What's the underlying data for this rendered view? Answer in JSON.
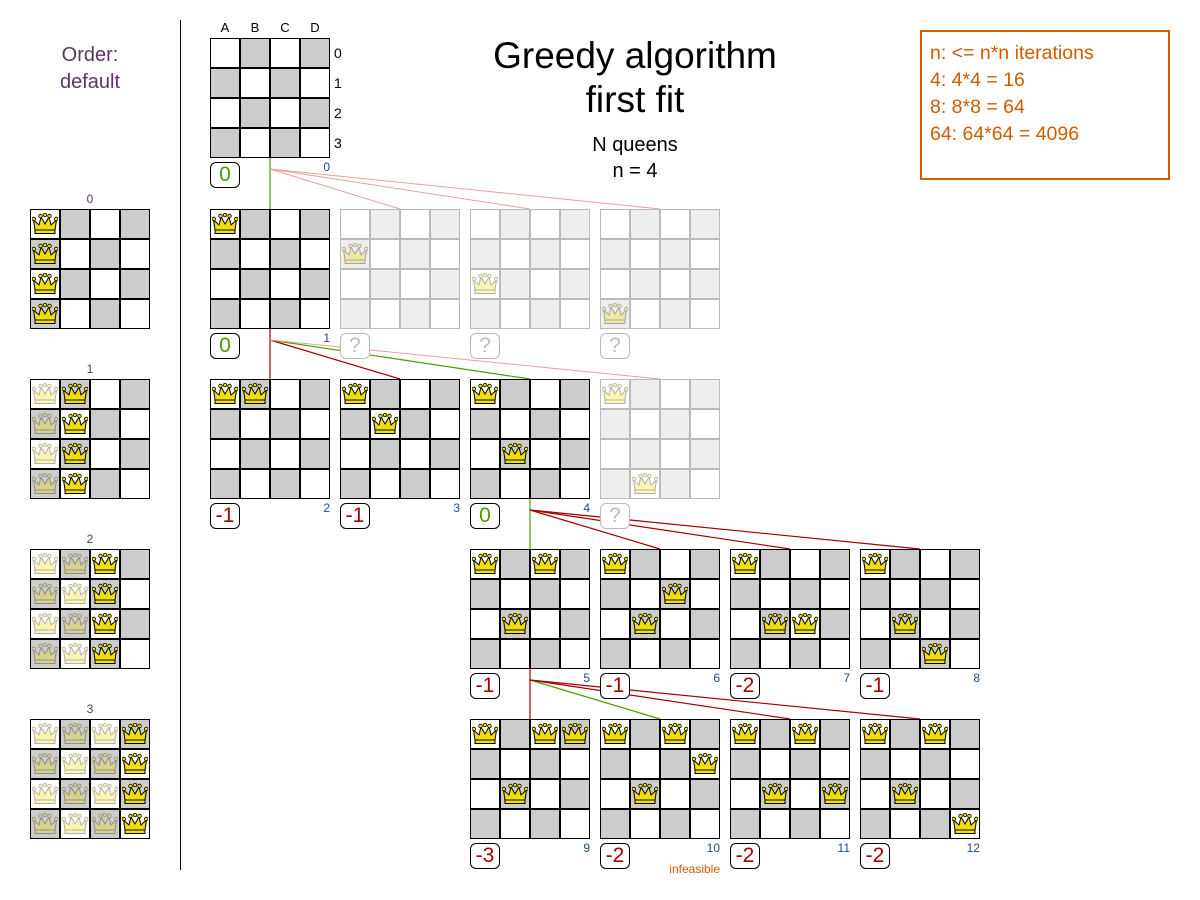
{
  "title": [
    "Greedy algorithm",
    "first fit"
  ],
  "subtitle": [
    "N queens",
    "n = 4"
  ],
  "info": [
    "n: <= n*n iterations",
    "4: 4*4 = 16",
    "8: 8*8 = 64",
    "64: 64*64 = 4096"
  ],
  "order": [
    "Order:",
    "default"
  ],
  "columns": [
    "A",
    "B",
    "C",
    "D"
  ],
  "rows": [
    "0",
    "1",
    "2",
    "3"
  ],
  "colors": {
    "green": "#4e9a06",
    "red": "#a40000",
    "pink": "#e8a0a0",
    "orange": "#ce5c00",
    "blue": "#204a87",
    "purple": "#5c3566",
    "queen": "#f0e000"
  },
  "order_boards": [
    {
      "label": "0",
      "queens": [
        [
          "A0",
          0
        ],
        [
          "A1",
          0
        ],
        [
          "A2",
          0
        ],
        [
          "A3",
          0
        ]
      ]
    },
    {
      "label": "1",
      "queens": [
        [
          "A0",
          1
        ],
        [
          "A1",
          1
        ],
        [
          "A2",
          1
        ],
        [
          "A3",
          1
        ],
        [
          "B0",
          0
        ],
        [
          "B1",
          0
        ],
        [
          "B2",
          0
        ],
        [
          "B3",
          0
        ]
      ]
    },
    {
      "label": "2",
      "queens": [
        [
          "A0",
          1
        ],
        [
          "A1",
          1
        ],
        [
          "A2",
          1
        ],
        [
          "A3",
          1
        ],
        [
          "B0",
          1
        ],
        [
          "B1",
          1
        ],
        [
          "B2",
          1
        ],
        [
          "B3",
          1
        ],
        [
          "C0",
          0
        ],
        [
          "C1",
          0
        ],
        [
          "C2",
          0
        ],
        [
          "C3",
          0
        ]
      ]
    },
    {
      "label": "3",
      "queens": [
        [
          "A0",
          1
        ],
        [
          "A1",
          1
        ],
        [
          "A2",
          1
        ],
        [
          "A3",
          1
        ],
        [
          "B0",
          1
        ],
        [
          "B1",
          1
        ],
        [
          "B2",
          1
        ],
        [
          "B3",
          1
        ],
        [
          "C0",
          1
        ],
        [
          "C1",
          1
        ],
        [
          "C2",
          1
        ],
        [
          "C3",
          1
        ],
        [
          "D0",
          0
        ],
        [
          "D1",
          0
        ],
        [
          "D2",
          0
        ],
        [
          "D3",
          0
        ]
      ]
    }
  ],
  "tree": [
    {
      "number": "0",
      "score": "0",
      "status": "chosen",
      "queens": []
    },
    {
      "number": "1",
      "score": "0",
      "status": "chosen",
      "queens": [
        "A0"
      ]
    },
    {
      "number": "",
      "score": "?",
      "status": "unevaluated",
      "queens": [
        "A1"
      ]
    },
    {
      "number": "",
      "score": "?",
      "status": "unevaluated",
      "queens": [
        "A2"
      ]
    },
    {
      "number": "",
      "score": "?",
      "status": "unevaluated",
      "queens": [
        "A3"
      ]
    },
    {
      "number": "2",
      "score": "-1",
      "status": "evaluated",
      "queens": [
        "A0",
        "B0"
      ]
    },
    {
      "number": "3",
      "score": "-1",
      "status": "evaluated",
      "queens": [
        "A0",
        "B1"
      ]
    },
    {
      "number": "4",
      "score": "0",
      "status": "chosen",
      "queens": [
        "A0",
        "B2"
      ]
    },
    {
      "number": "",
      "score": "?",
      "status": "unevaluated",
      "queens": [
        "A0",
        "B3"
      ]
    },
    {
      "number": "5",
      "score": "-1",
      "status": "chosen",
      "queens": [
        "A0",
        "B2",
        "C0"
      ]
    },
    {
      "number": "6",
      "score": "-1",
      "status": "evaluated",
      "queens": [
        "A0",
        "B2",
        "C1"
      ]
    },
    {
      "number": "7",
      "score": "-2",
      "status": "evaluated",
      "queens": [
        "A0",
        "B2",
        "C2"
      ]
    },
    {
      "number": "8",
      "score": "-1",
      "status": "evaluated",
      "queens": [
        "A0",
        "B2",
        "C3"
      ]
    },
    {
      "number": "9",
      "score": "-3",
      "status": "evaluated",
      "queens": [
        "A0",
        "B2",
        "C0",
        "D0"
      ]
    },
    {
      "number": "10",
      "score": "-2",
      "status": "evaluated",
      "queens": [
        "A0",
        "B2",
        "C0",
        "D1"
      ],
      "note": "infeasible"
    },
    {
      "number": "11",
      "score": "-2",
      "status": "evaluated",
      "queens": [
        "A0",
        "B2",
        "C0",
        "D2"
      ]
    },
    {
      "number": "12",
      "score": "-2",
      "status": "evaluated",
      "queens": [
        "A0",
        "B2",
        "C0",
        "D3"
      ]
    }
  ],
  "edges": [
    {
      "from": 0,
      "to": 1,
      "color": "green"
    },
    {
      "from": 0,
      "to": 2,
      "color": "pink"
    },
    {
      "from": 0,
      "to": 3,
      "color": "pink"
    },
    {
      "from": 0,
      "to": 4,
      "color": "pink"
    },
    {
      "from": 1,
      "to": 5,
      "color": "red"
    },
    {
      "from": 1,
      "to": 6,
      "color": "red"
    },
    {
      "from": 1,
      "to": 7,
      "color": "green"
    },
    {
      "from": 1,
      "to": 8,
      "color": "pink"
    },
    {
      "from": 7,
      "to": 9,
      "color": "green"
    },
    {
      "from": 7,
      "to": 10,
      "color": "red"
    },
    {
      "from": 7,
      "to": 11,
      "color": "red"
    },
    {
      "from": 7,
      "to": 12,
      "color": "red"
    },
    {
      "from": 9,
      "to": 13,
      "color": "red"
    },
    {
      "from": 9,
      "to": 14,
      "color": "green"
    },
    {
      "from": 9,
      "to": 15,
      "color": "red"
    },
    {
      "from": 9,
      "to": 16,
      "color": "red"
    }
  ]
}
